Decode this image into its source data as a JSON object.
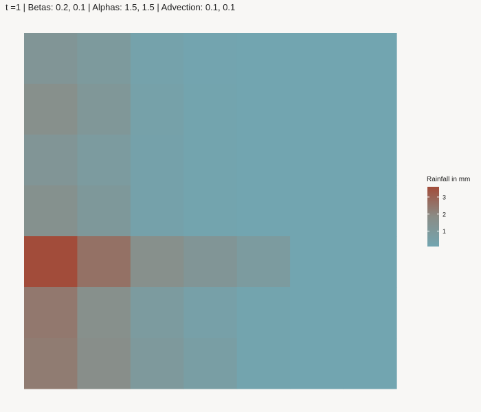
{
  "title": "t =1 | Betas: 0.2, 0.1 | Alphas: 1.5, 1.5 | Advection: 0.1, 0.1",
  "chart_data": {
    "type": "heatmap",
    "title": "t =1 | Betas: 0.2, 0.1 | Alphas: 1.5, 1.5 | Advection: 0.1, 0.1",
    "xlabel": "",
    "ylabel": "",
    "grid": false,
    "legend_placement": "right",
    "legend": {
      "title": "Rainfall in mm",
      "ticks": [
        "1",
        "2",
        "3"
      ],
      "tick_values": [
        1,
        2,
        3
      ],
      "range": [
        0.1,
        3.6
      ],
      "colors": {
        "low": "#72a5b0",
        "mid": "#8a8c86",
        "high": "#a24c3a"
      }
    },
    "rows": [
      [
        1.2,
        0.9,
        0.3,
        0.15,
        0.1,
        0.1,
        0.1
      ],
      [
        1.6,
        1.1,
        0.4,
        0.2,
        0.1,
        0.1,
        0.1
      ],
      [
        1.2,
        0.8,
        0.35,
        0.2,
        0.1,
        0.1,
        0.1
      ],
      [
        1.5,
        1.0,
        0.35,
        0.2,
        0.1,
        0.1,
        0.1
      ],
      [
        3.6,
        2.6,
        1.6,
        1.2,
        0.8,
        0.1,
        0.1
      ],
      [
        2.4,
        1.6,
        0.8,
        0.45,
        0.2,
        0.1,
        0.1
      ],
      [
        2.3,
        1.7,
        0.95,
        0.6,
        0.2,
        0.1,
        0.1
      ]
    ]
  }
}
